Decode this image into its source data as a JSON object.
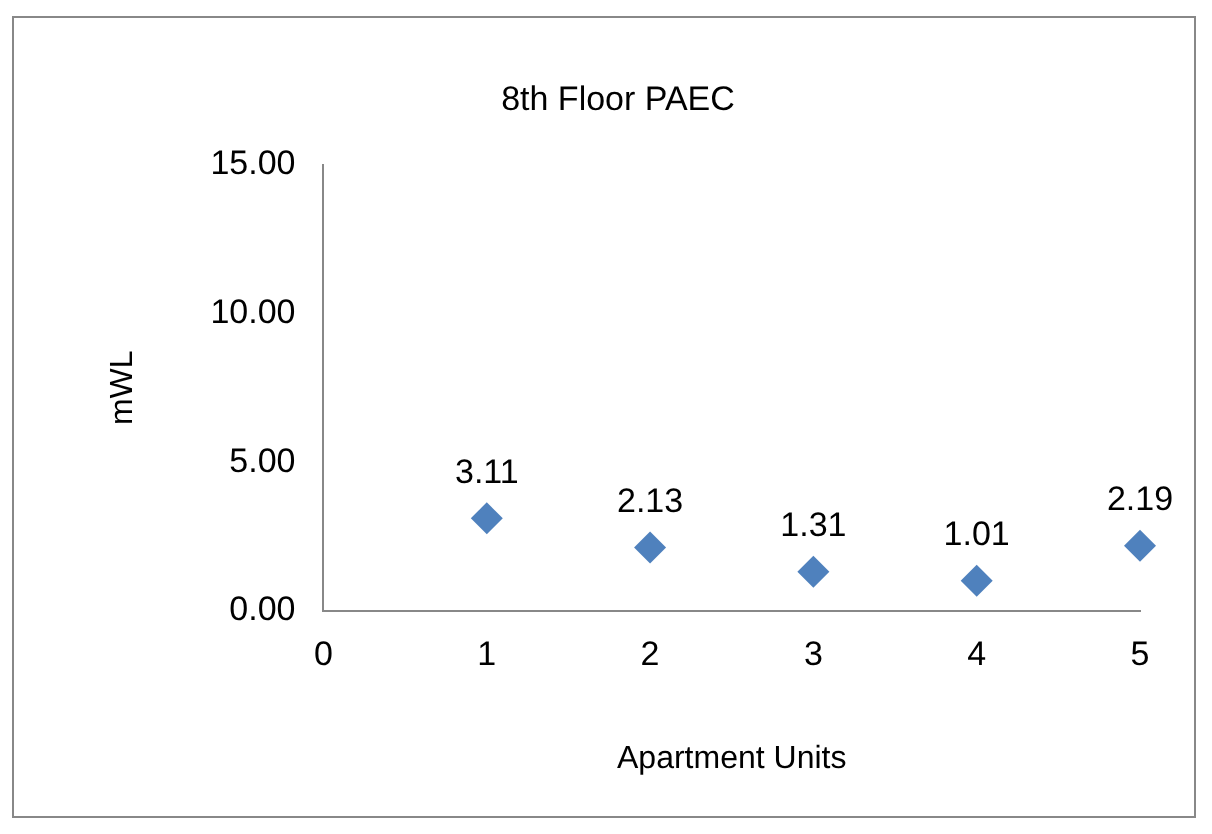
{
  "chart_data": {
    "type": "scatter",
    "title": "8th Floor PAEC",
    "xlabel": "Apartment Units",
    "ylabel": "mWL",
    "x": [
      1,
      2,
      3,
      4,
      5
    ],
    "series": [
      {
        "color": "#4f81bd",
        "values": [
          3.11,
          2.13,
          1.31,
          1.01,
          2.19
        ]
      }
    ],
    "xlim": [
      0,
      5
    ],
    "xticks": [
      0,
      1,
      2,
      3,
      4,
      5
    ],
    "ylim": [
      0,
      15
    ],
    "yticks": [
      {
        "value": 0,
        "label": "0.00"
      },
      {
        "value": 5,
        "label": "5.00"
      },
      {
        "value": 10,
        "label": "10.00"
      },
      {
        "value": 15,
        "label": "15.00"
      }
    ],
    "grid": false,
    "legend": false,
    "marker": "diamond",
    "data_labels": true
  }
}
